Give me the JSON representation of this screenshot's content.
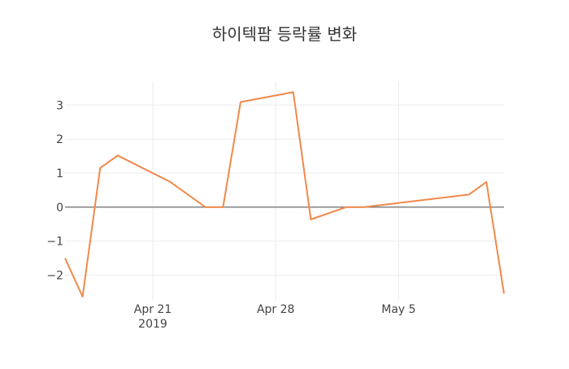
{
  "chart_data": {
    "type": "line",
    "title": "하이텍팜 등락률 변화",
    "xlabel": "",
    "ylabel": "",
    "x_tick_labels": [
      {
        "date": "2019-04-21",
        "lines": [
          "Apr 21",
          "2019"
        ]
      },
      {
        "date": "2019-04-28",
        "lines": [
          "Apr 28"
        ]
      },
      {
        "date": "2019-05-05",
        "lines": [
          "May 5"
        ]
      }
    ],
    "y_ticks": [
      3,
      2,
      1,
      0,
      -1,
      -2
    ],
    "y_tick_labels": [
      "3",
      "2",
      "1",
      "0",
      "−1",
      "−2"
    ],
    "xlim": [
      "2019-04-16",
      "2019-05-11"
    ],
    "ylim": [
      -2.75,
      3.7
    ],
    "grid": true,
    "zero_line": true,
    "series": [
      {
        "color": "#f0894a",
        "points": [
          {
            "x": "2019-04-16",
            "y": -1.5
          },
          {
            "x": "2019-04-17",
            "y": -2.63
          },
          {
            "x": "2019-04-18",
            "y": 1.15
          },
          {
            "x": "2019-04-19",
            "y": 1.52
          },
          {
            "x": "2019-04-22",
            "y": 0.74
          },
          {
            "x": "2019-04-24",
            "y": 0.0
          },
          {
            "x": "2019-04-25",
            "y": 0.0
          },
          {
            "x": "2019-04-26",
            "y": 3.09
          },
          {
            "x": "2019-04-29",
            "y": 3.38
          },
          {
            "x": "2019-04-30",
            "y": -0.36
          },
          {
            "x": "2019-05-02",
            "y": 0.0
          },
          {
            "x": "2019-05-03",
            "y": 0.0
          },
          {
            "x": "2019-05-09",
            "y": 0.37
          },
          {
            "x": "2019-05-10",
            "y": 0.74
          },
          {
            "x": "2019-05-11",
            "y": -2.54
          }
        ]
      }
    ]
  }
}
